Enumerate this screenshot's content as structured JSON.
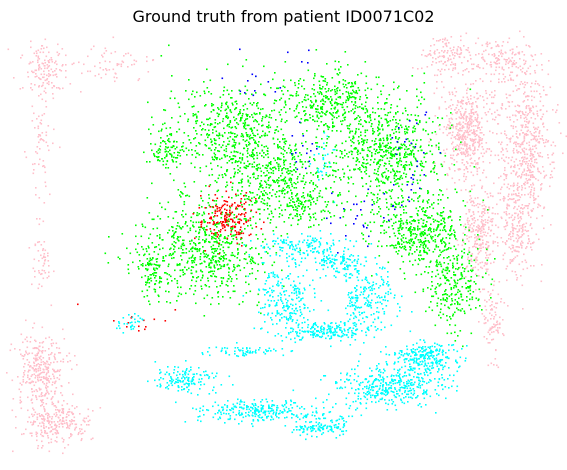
{
  "chart_data": {
    "type": "scatter",
    "title": "Ground truth from patient ID0071C02",
    "xlabel": "",
    "ylabel": "",
    "axes_visible": false,
    "grid": false,
    "legend": "none",
    "series": [
      {
        "color": "#ffc0cb",
        "clusters": [
          {
            "cx": 45,
            "cy": 70,
            "rx": 22,
            "ry": 28,
            "n": 140
          },
          {
            "cx": 115,
            "cy": 65,
            "rx": 35,
            "ry": 18,
            "n": 60
          },
          {
            "cx": 40,
            "cy": 150,
            "rx": 10,
            "ry": 50,
            "n": 60
          },
          {
            "cx": 40,
            "cy": 260,
            "rx": 10,
            "ry": 30,
            "n": 50
          },
          {
            "cx": 40,
            "cy": 370,
            "rx": 22,
            "ry": 35,
            "n": 300
          },
          {
            "cx": 55,
            "cy": 420,
            "rx": 30,
            "ry": 22,
            "n": 260
          },
          {
            "cx": 445,
            "cy": 55,
            "rx": 25,
            "ry": 18,
            "n": 120
          },
          {
            "cx": 500,
            "cy": 60,
            "rx": 28,
            "ry": 20,
            "n": 150
          },
          {
            "cx": 465,
            "cy": 130,
            "rx": 22,
            "ry": 45,
            "n": 500
          },
          {
            "cx": 525,
            "cy": 150,
            "rx": 25,
            "ry": 70,
            "n": 550
          },
          {
            "cx": 478,
            "cy": 230,
            "rx": 15,
            "ry": 45,
            "n": 280
          },
          {
            "cx": 515,
            "cy": 230,
            "rx": 15,
            "ry": 45,
            "n": 200
          },
          {
            "cx": 492,
            "cy": 315,
            "rx": 10,
            "ry": 35,
            "n": 90
          }
        ]
      },
      {
        "color": "#00ff00",
        "clusters": [
          {
            "cx": 230,
            "cy": 130,
            "rx": 60,
            "ry": 45,
            "n": 500
          },
          {
            "cx": 270,
            "cy": 175,
            "rx": 55,
            "ry": 40,
            "n": 450
          },
          {
            "cx": 200,
            "cy": 250,
            "rx": 60,
            "ry": 45,
            "n": 650
          },
          {
            "cx": 330,
            "cy": 100,
            "rx": 45,
            "ry": 30,
            "n": 350
          },
          {
            "cx": 385,
            "cy": 150,
            "rx": 50,
            "ry": 50,
            "n": 650
          },
          {
            "cx": 420,
            "cy": 230,
            "rx": 40,
            "ry": 35,
            "n": 450
          },
          {
            "cx": 455,
            "cy": 285,
            "rx": 25,
            "ry": 35,
            "n": 250
          },
          {
            "cx": 165,
            "cy": 150,
            "rx": 15,
            "ry": 20,
            "n": 80
          },
          {
            "cx": 150,
            "cy": 270,
            "rx": 12,
            "ry": 25,
            "n": 80
          },
          {
            "cx": 305,
            "cy": 205,
            "rx": 30,
            "ry": 20,
            "n": 120
          }
        ]
      },
      {
        "color": "#ff0000",
        "clusters": [
          {
            "cx": 228,
            "cy": 218,
            "rx": 25,
            "ry": 22,
            "n": 180
          },
          {
            "cx": 135,
            "cy": 325,
            "rx": 35,
            "ry": 18,
            "n": 14
          }
        ]
      },
      {
        "color": "#0000ff",
        "clusters": [
          {
            "cx": 250,
            "cy": 85,
            "rx": 25,
            "ry": 20,
            "n": 12
          },
          {
            "cx": 300,
            "cy": 55,
            "rx": 12,
            "ry": 8,
            "n": 4
          },
          {
            "cx": 305,
            "cy": 150,
            "rx": 12,
            "ry": 25,
            "n": 14
          },
          {
            "cx": 410,
            "cy": 140,
            "rx": 25,
            "ry": 25,
            "n": 16
          },
          {
            "cx": 360,
            "cy": 215,
            "rx": 40,
            "ry": 25,
            "n": 28
          },
          {
            "cx": 410,
            "cy": 180,
            "rx": 15,
            "ry": 25,
            "n": 12
          }
        ]
      },
      {
        "color": "#00ffff",
        "clusters": [
          {
            "cx": 322,
            "cy": 155,
            "rx": 10,
            "ry": 25,
            "n": 30
          },
          {
            "cx": 300,
            "cy": 245,
            "rx": 40,
            "ry": 10,
            "n": 130
          },
          {
            "cx": 285,
            "cy": 300,
            "rx": 25,
            "ry": 35,
            "n": 230
          },
          {
            "cx": 325,
            "cy": 330,
            "rx": 35,
            "ry": 8,
            "n": 180
          },
          {
            "cx": 375,
            "cy": 300,
            "rx": 20,
            "ry": 30,
            "n": 140
          },
          {
            "cx": 345,
            "cy": 265,
            "rx": 20,
            "ry": 12,
            "n": 80
          },
          {
            "cx": 355,
            "cy": 300,
            "rx": 8,
            "ry": 25,
            "n": 60
          },
          {
            "cx": 325,
            "cy": 258,
            "rx": 12,
            "ry": 8,
            "n": 40
          },
          {
            "cx": 130,
            "cy": 320,
            "rx": 15,
            "ry": 10,
            "n": 30
          },
          {
            "cx": 185,
            "cy": 378,
            "rx": 30,
            "ry": 12,
            "n": 140
          },
          {
            "cx": 260,
            "cy": 410,
            "rx": 55,
            "ry": 10,
            "n": 260
          },
          {
            "cx": 320,
            "cy": 425,
            "rx": 25,
            "ry": 10,
            "n": 130
          },
          {
            "cx": 390,
            "cy": 385,
            "rx": 50,
            "ry": 18,
            "n": 400
          },
          {
            "cx": 425,
            "cy": 355,
            "rx": 30,
            "ry": 12,
            "n": 240
          },
          {
            "cx": 240,
            "cy": 350,
            "rx": 30,
            "ry": 5,
            "n": 60
          }
        ]
      }
    ]
  }
}
